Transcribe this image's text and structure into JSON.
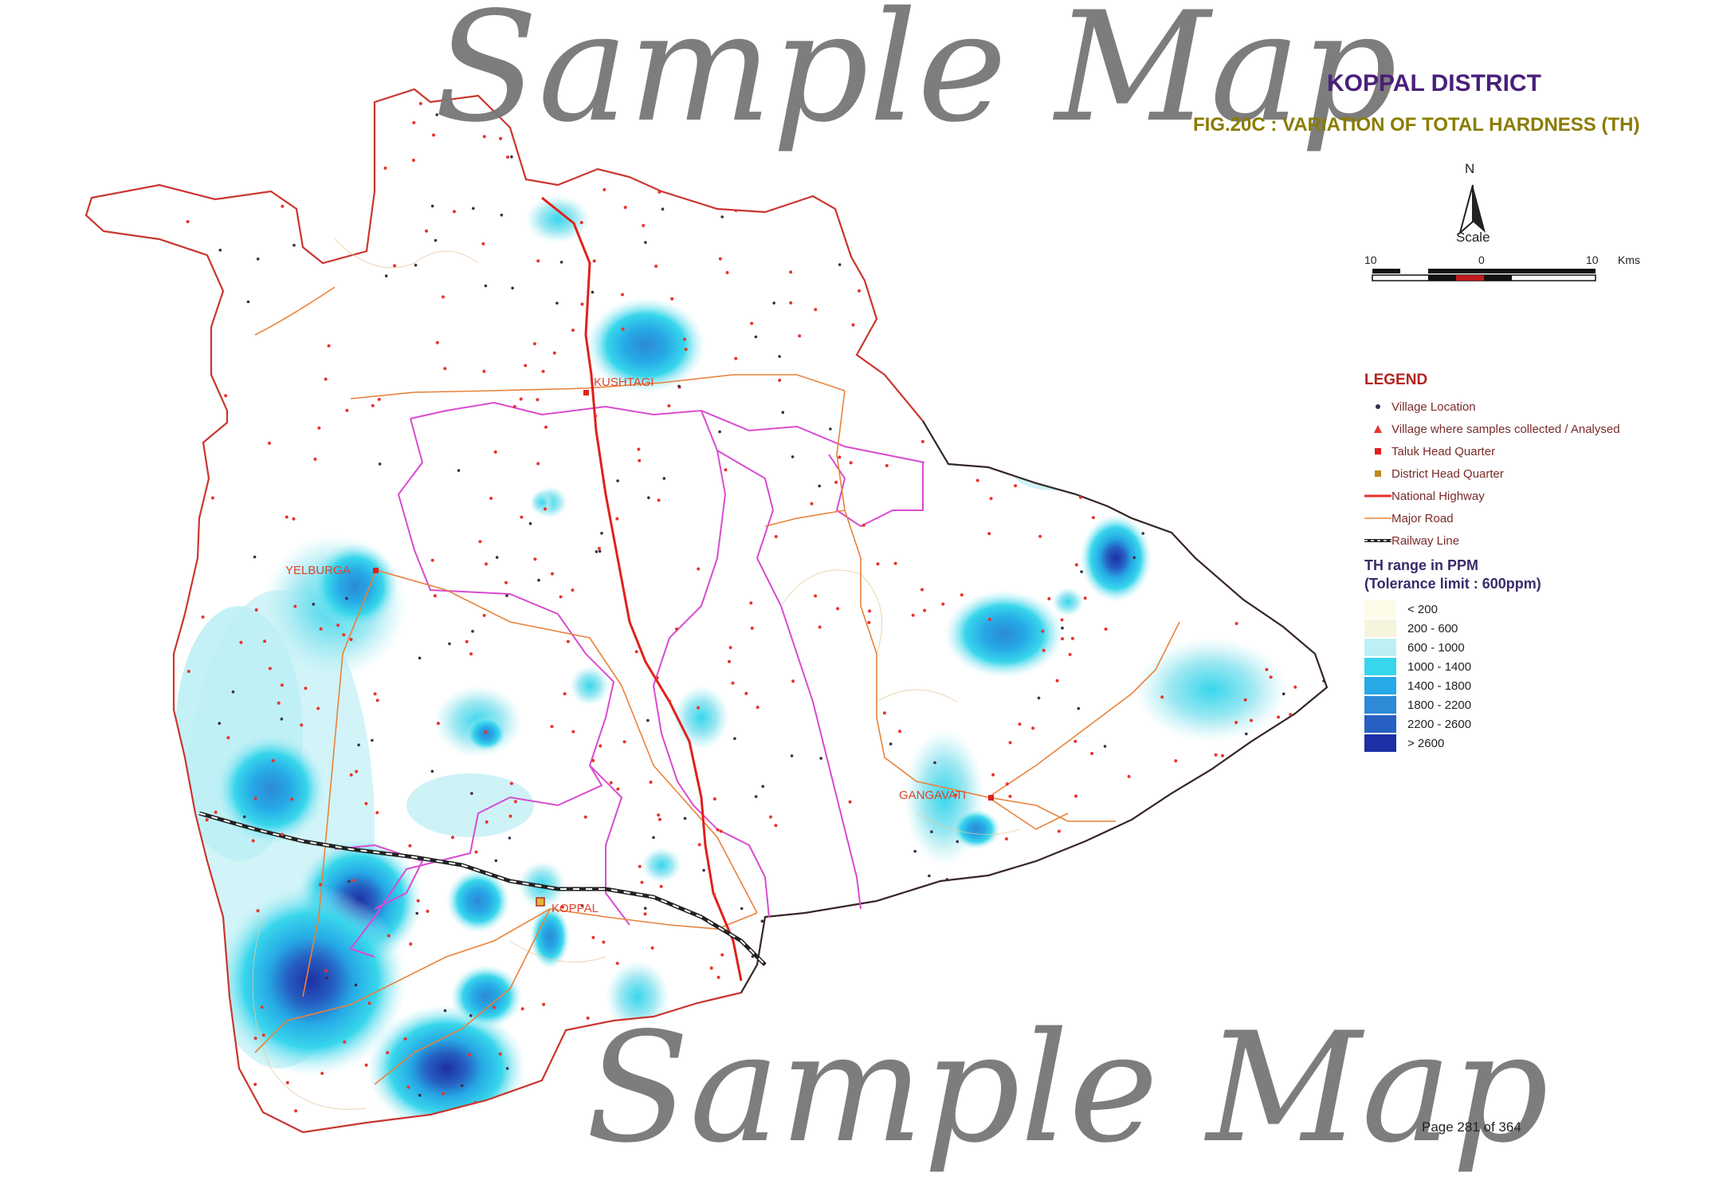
{
  "header": {
    "title": "KOPPAL DISTRICT",
    "figure": "FIG.20C  : VARIATION OF TOTAL HARDNESS (TH)"
  },
  "watermark": {
    "text": "Sample Map"
  },
  "north_arrow": {
    "label": "N",
    "icon": "north-arrow-icon"
  },
  "scale": {
    "label": "Scale",
    "left": "10",
    "center": "0",
    "right": "10",
    "unit": "Kms"
  },
  "towns": {
    "kushtagi": "KUSHTAGI",
    "yelburga": "YELBURGA",
    "koppal": "KOPPAL",
    "gangavati": "GANGAVATI"
  },
  "legend": {
    "title": "LEGEND",
    "items": [
      {
        "label": "Village Location",
        "icon": "dot-icon",
        "color": "#3b2d4a"
      },
      {
        "label": "Village where samples collected / Analysed",
        "icon": "triangle-icon",
        "color": "#e8342c"
      },
      {
        "label": "Taluk Head Quarter",
        "icon": "square-icon",
        "color": "#e0201c"
      },
      {
        "label": "District Head Quarter",
        "icon": "square-icon",
        "color": "#c08a1c"
      },
      {
        "label": "National Highway",
        "icon": "thick-line-icon",
        "color": "#e8302a"
      },
      {
        "label": "Major Road",
        "icon": "thin-line-icon",
        "color": "#e8823a"
      },
      {
        "label": "Railway Line",
        "icon": "railway-line-icon",
        "color": "#222222"
      }
    ],
    "range_title_1": "TH range in PPM",
    "range_title_2": "(Tolerance limit : 600ppm)",
    "ranges": [
      {
        "label": "< 200",
        "color": "#fffbe9"
      },
      {
        "label": "200 - 600",
        "color": "#f6f4dc"
      },
      {
        "label": "600 - 1000",
        "color": "#bdf0f5"
      },
      {
        "label": "1000 - 1400",
        "color": "#38d6ec"
      },
      {
        "label": "1400 - 1800",
        "color": "#26a9e6"
      },
      {
        "label": "1800 - 2200",
        "color": "#2c8ad6"
      },
      {
        "label": "2200 - 2600",
        "color": "#2660c2"
      },
      {
        "label": "> 2600",
        "color": "#1c2fa4"
      }
    ]
  },
  "footer": {
    "page": "Page 281 of 364"
  }
}
